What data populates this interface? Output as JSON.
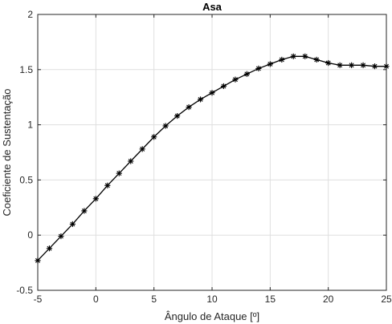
{
  "chart_data": {
    "type": "line",
    "title": "Asa",
    "xlabel": "Ângulo de Ataque [º]",
    "ylabel": "Coeficiente de Sustentação",
    "xlim": [
      -5,
      25
    ],
    "ylim": [
      -0.5,
      2
    ],
    "x_ticks": [
      "-5",
      "0",
      "5",
      "10",
      "15",
      "20",
      "25"
    ],
    "y_ticks": [
      "-0.5",
      "0",
      "0.5",
      "1",
      "1.5",
      "2"
    ],
    "grid": true,
    "marker": "asterisk",
    "line_color": "#000000",
    "series": [
      {
        "x": [
          -5,
          -4,
          -3,
          -2,
          -1,
          0,
          1,
          2,
          3,
          4,
          5,
          6,
          7,
          8,
          9,
          10,
          11,
          12,
          13,
          14,
          15,
          16,
          17,
          18,
          19,
          20,
          21,
          22,
          23,
          24,
          25
        ],
        "y": [
          -0.23,
          -0.12,
          -0.01,
          0.1,
          0.22,
          0.33,
          0.45,
          0.56,
          0.67,
          0.78,
          0.89,
          0.99,
          1.08,
          1.16,
          1.23,
          1.29,
          1.35,
          1.41,
          1.46,
          1.51,
          1.55,
          1.59,
          1.62,
          1.62,
          1.59,
          1.56,
          1.54,
          1.54,
          1.54,
          1.53,
          1.53
        ]
      }
    ]
  }
}
